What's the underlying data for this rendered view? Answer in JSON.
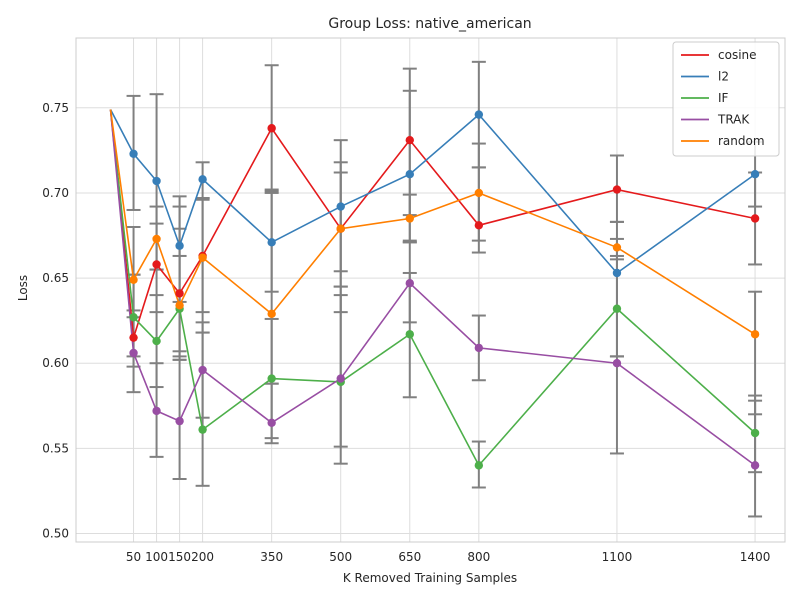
{
  "chart_data": {
    "type": "line",
    "title": "Group Loss: native_american",
    "xlabel": "K Removed Training Samples",
    "ylabel": "Loss",
    "x_ticks": [
      50,
      100,
      150,
      200,
      350,
      500,
      650,
      800,
      1100,
      1400
    ],
    "x_tick_labels": [
      "50",
      "100",
      "150",
      "200",
      "350",
      "500",
      "650",
      "800",
      "1100",
      "1400"
    ],
    "xlim": [
      -75,
      1465
    ],
    "y_ticks": [
      0.5,
      0.55,
      0.6,
      0.65,
      0.7,
      0.75
    ],
    "y_tick_labels": [
      "0.50",
      "0.55",
      "0.60",
      "0.65",
      "0.70",
      "0.75"
    ],
    "ylim": [
      0.495,
      0.791
    ],
    "grid": true,
    "legend_position": "top-right",
    "baseline_x": 0,
    "baseline_y": 0.749,
    "x": [
      50,
      100,
      150,
      200,
      350,
      500,
      650,
      800,
      1100,
      1400
    ],
    "series": [
      {
        "name": "cosine",
        "color": "#e41a1c",
        "values": [
          0.615,
          0.658,
          0.641,
          0.663,
          0.738,
          0.679,
          0.731,
          0.681,
          0.702,
          0.685
        ],
        "err_low": [
          0.583,
          0.63,
          0.607,
          0.63,
          0.7,
          0.63,
          0.687,
          0.665,
          0.683,
          0.658
        ],
        "err_high": [
          0.652,
          0.682,
          0.679,
          0.697,
          0.775,
          0.718,
          0.773,
          0.729,
          0.722,
          0.712
        ]
      },
      {
        "name": "l2",
        "color": "#377eb8",
        "values": [
          0.723,
          0.707,
          0.669,
          0.708,
          0.671,
          0.692,
          0.711,
          0.746,
          0.653,
          0.711
        ],
        "err_low": [
          0.69,
          0.655,
          0.636,
          0.697,
          0.642,
          0.654,
          0.672,
          0.715,
          0.604,
          0.692
        ],
        "err_high": [
          0.757,
          0.758,
          0.698,
          0.718,
          0.701,
          0.731,
          0.76,
          0.777,
          0.673,
          0.73
        ]
      },
      {
        "name": "IF",
        "color": "#4daf4a",
        "values": [
          0.627,
          0.613,
          0.632,
          0.561,
          0.591,
          0.589,
          0.617,
          0.54,
          0.632,
          0.559
        ],
        "err_low": [
          0.604,
          0.586,
          0.604,
          0.528,
          0.556,
          0.541,
          0.58,
          0.527,
          0.604,
          0.536
        ],
        "err_high": [
          0.652,
          0.64,
          0.663,
          0.624,
          0.626,
          0.645,
          0.653,
          0.554,
          0.663,
          0.581
        ]
      },
      {
        "name": "TRAK",
        "color": "#984ea3",
        "values": [
          0.606,
          0.572,
          0.566,
          0.596,
          0.565,
          0.591,
          0.647,
          0.609,
          0.6,
          0.54
        ],
        "err_low": [
          0.598,
          0.545,
          0.532,
          0.568,
          0.553,
          0.551,
          0.624,
          0.59,
          0.547,
          0.51
        ],
        "err_high": [
          0.631,
          0.6,
          0.602,
          0.618,
          0.588,
          0.64,
          0.671,
          0.628,
          0.604,
          0.578
        ]
      },
      {
        "name": "random",
        "color": "#ff7f00",
        "values": [
          0.649,
          0.673,
          0.634,
          0.662,
          0.629,
          0.679,
          0.685,
          0.7,
          0.668,
          0.617
        ],
        "err_low": [
          0.627,
          0.655,
          0.602,
          0.618,
          0.588,
          0.645,
          0.671,
          0.672,
          0.661,
          0.57
        ],
        "err_high": [
          0.68,
          0.692,
          0.692,
          0.696,
          0.702,
          0.712,
          0.699,
          0.715,
          0.683,
          0.642
        ]
      }
    ]
  }
}
